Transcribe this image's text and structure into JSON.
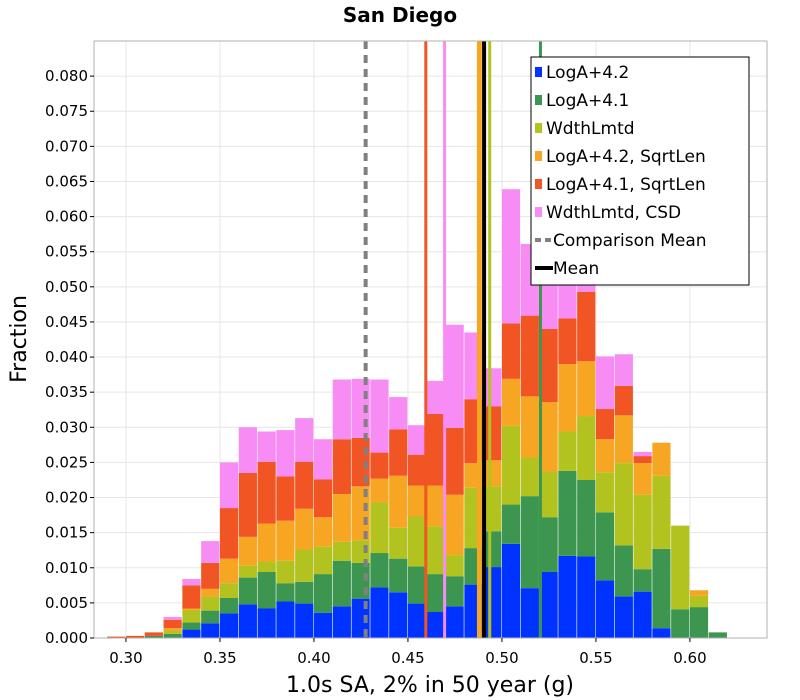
{
  "chart_data": {
    "type": "bar",
    "stacked": true,
    "title": "San Diego",
    "xlabel": "1.0s SA, 2% in 50 year (g)",
    "ylabel": "Fraction",
    "xlim": [
      0.283,
      0.641
    ],
    "ylim": [
      0,
      0.085
    ],
    "xticks": [
      "0.30",
      "0.35",
      "0.40",
      "0.45",
      "0.50",
      "0.55",
      "0.60"
    ],
    "yticks": [
      "0.000",
      "0.005",
      "0.010",
      "0.015",
      "0.020",
      "0.025",
      "0.030",
      "0.035",
      "0.040",
      "0.045",
      "0.050",
      "0.055",
      "0.060",
      "0.065",
      "0.070",
      "0.075",
      "0.080"
    ],
    "bin_width": 0.01,
    "bin_starts": [
      0.29,
      0.3,
      0.31,
      0.32,
      0.33,
      0.34,
      0.35,
      0.36,
      0.37,
      0.38,
      0.39,
      0.4,
      0.41,
      0.42,
      0.43,
      0.44,
      0.45,
      0.46,
      0.47,
      0.48,
      0.49,
      0.5,
      0.51,
      0.52,
      0.53,
      0.54,
      0.55,
      0.56,
      0.57,
      0.58,
      0.59,
      0.6,
      0.61
    ],
    "series": [
      {
        "name": "LogA+4.2",
        "color": "#0033ff",
        "values": [
          0,
          0,
          0,
          0,
          0.0012,
          0.0021,
          0.0035,
          0.0048,
          0.0042,
          0.0052,
          0.0049,
          0.0036,
          0.0045,
          0.0056,
          0.0072,
          0.0065,
          0.0049,
          0.0037,
          0.0045,
          0.0076,
          0.0101,
          0.0134,
          0.0071,
          0.0094,
          0.0117,
          0.0116,
          0.0082,
          0.0059,
          0.0066,
          0.0014,
          0,
          0,
          0
        ]
      },
      {
        "name": "LogA+4.1",
        "color": "#3d9650",
        "values": [
          0,
          0,
          0.0003,
          0.0006,
          0.001,
          0.0018,
          0.0022,
          0.0038,
          0.0052,
          0.0026,
          0.0031,
          0.0055,
          0.0065,
          0.0051,
          0.0049,
          0.0048,
          0.0053,
          0.0054,
          0.0043,
          0.0052,
          0.0051,
          0.0056,
          0.0131,
          0.0078,
          0.0121,
          0.0109,
          0.0097,
          0.0073,
          0.0032,
          0.0113,
          0.0041,
          0.0044,
          0.0008
        ]
      },
      {
        "name": "WdthLmtd",
        "color": "#b2c21e",
        "values": [
          0,
          0,
          0,
          0.0004,
          0.0018,
          0.002,
          0.0021,
          0.0017,
          0.0015,
          0.0032,
          0.0046,
          0.0039,
          0.0027,
          0.0032,
          0.0072,
          0.0044,
          0.0071,
          0.0068,
          0.003,
          0.0086,
          0.0064,
          0.0112,
          0.0055,
          0.0065,
          0.0056,
          0.0091,
          0.0057,
          0.0117,
          0.0106,
          0.0104,
          0.0119,
          0.0016,
          0
        ]
      },
      {
        "name": "LogA+4.2, SqrtLen",
        "color": "#f7a623",
        "values": [
          0,
          0,
          0,
          0.0004,
          0.0002,
          0.0011,
          0.0035,
          0.0041,
          0.0054,
          0.0057,
          0.0058,
          0.0042,
          0.0068,
          0.0077,
          0.0034,
          0.0074,
          0.0044,
          0.0058,
          0.0086,
          0.0035,
          0.0037,
          0.0067,
          0.0087,
          0.0099,
          0.0096,
          0.0078,
          0.0047,
          0.0068,
          0.0045,
          0.0047,
          0,
          0.0008,
          0
        ]
      },
      {
        "name": "LogA+4.1, SqrtLen",
        "color": "#f05523",
        "values": [
          0.0002,
          0.0003,
          0.0005,
          0.0012,
          0.0033,
          0.0037,
          0.0072,
          0.0091,
          0.0088,
          0.0063,
          0.0067,
          0.0054,
          0.0078,
          0.0069,
          0.0037,
          0.0066,
          0.0044,
          0.0102,
          0.0095,
          0.0091,
          0.0077,
          0.0079,
          0.0115,
          0.0104,
          0.0065,
          0.0099,
          0.0043,
          0.0042,
          0.001,
          0,
          0,
          0,
          0
        ]
      },
      {
        "name": "WdthLmtd, CSD",
        "color": "#f78cf5",
        "values": [
          0,
          0,
          0,
          0.0004,
          0.0009,
          0.0031,
          0.0065,
          0.0065,
          0.0043,
          0.0066,
          0.0062,
          0.0057,
          0.0085,
          0.0084,
          0.0104,
          0.0046,
          0.0042,
          0.0047,
          0.0147,
          0.0095,
          0.0054,
          0.0191,
          0.0102,
          0.0085,
          0.0057,
          0.0069,
          0.0075,
          0.0045,
          0.0006,
          0,
          0,
          0,
          0
        ]
      }
    ],
    "reference_lines": [
      {
        "name": "LogA+4.2 mean",
        "x": 0.4875,
        "color": "#f7a623"
      },
      {
        "name": "LogA+4.1 mean",
        "x": 0.5205,
        "color": "#3d9650"
      },
      {
        "name": "WdthLmtd mean",
        "x": 0.4935,
        "color": "#b2c21e"
      },
      {
        "name": "LogA+4.2, SqrtLen mean",
        "x": 0.4885,
        "color": "#f7a623"
      },
      {
        "name": "LogA+4.1, SqrtLen mean",
        "x": 0.4595,
        "color": "#f05523"
      },
      {
        "name": "WdthLmtd, CSD mean",
        "x": 0.4695,
        "color": "#f78cf5"
      }
    ],
    "comparison_mean": 0.4275,
    "mean": 0.4905,
    "legend": {
      "placement": "top-right",
      "entries": [
        {
          "label": "LogA+4.2",
          "style": "patch",
          "color": "#0033ff"
        },
        {
          "label": "LogA+4.1",
          "style": "patch",
          "color": "#3d9650"
        },
        {
          "label": "WdthLmtd",
          "style": "patch",
          "color": "#b2c21e"
        },
        {
          "label": "LogA+4.2, SqrtLen",
          "style": "patch",
          "color": "#f7a623"
        },
        {
          "label": "LogA+4.1, SqrtLen",
          "style": "patch",
          "color": "#f05523"
        },
        {
          "label": "WdthLmtd, CSD",
          "style": "patch",
          "color": "#f78cf5"
        },
        {
          "label": "Comparison Mean",
          "style": "dashed",
          "color": "#808080"
        },
        {
          "label": "Mean",
          "style": "solid",
          "color": "#000000"
        }
      ]
    },
    "grid": true
  }
}
